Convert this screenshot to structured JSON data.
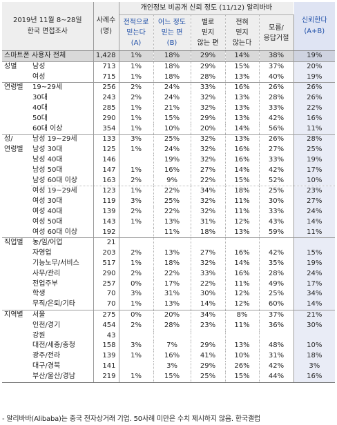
{
  "header": {
    "survey_line1": "2019년 11월 8~28일",
    "survey_line2": "한국 면접조사",
    "n_line1": "사례수",
    "n_line2": "(명)",
    "super_title": "개인정보 비공개 신뢰 정도 (11/12) 알리바바",
    "cols": [
      [
        "전적으로",
        "믿는다",
        "(A)"
      ],
      [
        "어느 정도",
        "믿는 편",
        "(B)"
      ],
      [
        "별로",
        "믿지",
        "않는 편"
      ],
      [
        "전혀",
        "믿지",
        "않는다"
      ],
      [
        "모름/",
        "응답거절",
        ""
      ]
    ],
    "trust_line1": "신뢰한다",
    "trust_line2": "(A+B)"
  },
  "rows": [
    {
      "g": "스마트폰 사용자 전체",
      "s": "",
      "n": "1,428",
      "v": [
        "1%",
        "18%",
        "29%",
        "14%",
        "38%",
        "19%"
      ],
      "total": true
    },
    {
      "g": "성별",
      "s": "남성",
      "n": "713",
      "v": [
        "1%",
        "18%",
        "29%",
        "15%",
        "37%",
        "20%"
      ],
      "sep": "solid"
    },
    {
      "g": "",
      "s": "여성",
      "n": "715",
      "v": [
        "1%",
        "18%",
        "28%",
        "13%",
        "40%",
        "19%"
      ]
    },
    {
      "g": "연령별",
      "s": "19~29세",
      "n": "256",
      "v": [
        "2%",
        "24%",
        "33%",
        "16%",
        "26%",
        "26%"
      ],
      "sep": "solid"
    },
    {
      "g": "",
      "s": "30대",
      "n": "243",
      "v": [
        "2%",
        "24%",
        "32%",
        "13%",
        "28%",
        "26%"
      ]
    },
    {
      "g": "",
      "s": "40대",
      "n": "285",
      "v": [
        "1%",
        "21%",
        "32%",
        "13%",
        "33%",
        "22%"
      ]
    },
    {
      "g": "",
      "s": "50대",
      "n": "290",
      "v": [
        "1%",
        "15%",
        "29%",
        "13%",
        "42%",
        "16%"
      ]
    },
    {
      "g": "",
      "s": "60대 이상",
      "n": "354",
      "v": [
        "1%",
        "10%",
        "20%",
        "14%",
        "56%",
        "11%"
      ]
    },
    {
      "g": "성/",
      "s": "남성 19~29세",
      "n": "133",
      "v": [
        "3%",
        "25%",
        "32%",
        "13%",
        "26%",
        "28%"
      ],
      "sep": "solid"
    },
    {
      "g": "연령별",
      "s": "남성 30대",
      "n": "125",
      "v": [
        "1%",
        "24%",
        "32%",
        "16%",
        "27%",
        "25%"
      ]
    },
    {
      "g": "",
      "s": "남성 40대",
      "n": "146",
      "v": [
        "",
        "19%",
        "32%",
        "16%",
        "33%",
        "19%"
      ]
    },
    {
      "g": "",
      "s": "남성 50대",
      "n": "147",
      "v": [
        "1%",
        "16%",
        "27%",
        "14%",
        "42%",
        "17%"
      ]
    },
    {
      "g": "",
      "s": "남성 60대 이상",
      "n": "163",
      "v": [
        "2%",
        "9%",
        "22%",
        "15%",
        "52%",
        "10%"
      ]
    },
    {
      "g": "",
      "s": "여성 19~29세",
      "n": "123",
      "v": [
        "1%",
        "22%",
        "34%",
        "18%",
        "25%",
        "23%"
      ],
      "sep": "dot"
    },
    {
      "g": "",
      "s": "여성 30대",
      "n": "119",
      "v": [
        "3%",
        "25%",
        "32%",
        "11%",
        "30%",
        "27%"
      ]
    },
    {
      "g": "",
      "s": "여성 40대",
      "n": "139",
      "v": [
        "2%",
        "22%",
        "32%",
        "11%",
        "33%",
        "24%"
      ]
    },
    {
      "g": "",
      "s": "여성 50대",
      "n": "143",
      "v": [
        "1%",
        "13%",
        "31%",
        "12%",
        "43%",
        "14%"
      ]
    },
    {
      "g": "",
      "s": "여성 60대 이상",
      "n": "192",
      "v": [
        "",
        "11%",
        "18%",
        "13%",
        "59%",
        "11%"
      ]
    },
    {
      "g": "직업별",
      "s": "농/임/어업",
      "n": "21",
      "v": [
        "",
        "",
        "",
        "",
        "",
        ""
      ],
      "sep": "solid"
    },
    {
      "g": "",
      "s": "자영업",
      "n": "203",
      "v": [
        "2%",
        "13%",
        "27%",
        "16%",
        "42%",
        "15%"
      ]
    },
    {
      "g": "",
      "s": "기능노무/서비스",
      "n": "517",
      "v": [
        "1%",
        "18%",
        "32%",
        "14%",
        "35%",
        "19%"
      ]
    },
    {
      "g": "",
      "s": "사무/관리",
      "n": "290",
      "v": [
        "2%",
        "22%",
        "33%",
        "16%",
        "28%",
        "24%"
      ]
    },
    {
      "g": "",
      "s": "전업주부",
      "n": "257",
      "v": [
        "0%",
        "17%",
        "22%",
        "11%",
        "49%",
        "17%"
      ]
    },
    {
      "g": "",
      "s": "학생",
      "n": "70",
      "v": [
        "3%",
        "31%",
        "30%",
        "12%",
        "25%",
        "34%"
      ]
    },
    {
      "g": "",
      "s": "무직/은퇴/기타",
      "n": "70",
      "v": [
        "1%",
        "13%",
        "14%",
        "12%",
        "60%",
        "14%"
      ]
    },
    {
      "g": "지역별",
      "s": "서울",
      "n": "275",
      "v": [
        "0%",
        "20%",
        "34%",
        "8%",
        "37%",
        "21%"
      ],
      "sep": "solid"
    },
    {
      "g": "",
      "s": "인천/경기",
      "n": "454",
      "v": [
        "2%",
        "28%",
        "23%",
        "11%",
        "36%",
        "30%"
      ]
    },
    {
      "g": "",
      "s": "강원",
      "n": "43",
      "v": [
        "",
        "",
        "",
        "",
        "",
        ""
      ]
    },
    {
      "g": "",
      "s": "대전/세종/충청",
      "n": "158",
      "v": [
        "3%",
        "7%",
        "29%",
        "13%",
        "48%",
        "10%"
      ]
    },
    {
      "g": "",
      "s": "광주/전라",
      "n": "139",
      "v": [
        "1%",
        "16%",
        "41%",
        "10%",
        "31%",
        "18%"
      ]
    },
    {
      "g": "",
      "s": "대구/경북",
      "n": "141",
      "v": [
        "",
        "3%",
        "29%",
        "26%",
        "42%",
        "3%"
      ]
    },
    {
      "g": "",
      "s": "부산/울산/경남",
      "n": "219",
      "v": [
        "1%",
        "15%",
        "25%",
        "15%",
        "44%",
        "16%"
      ]
    }
  ],
  "footnote": "- 알리바바(Alibaba)는 중국 전자상거래 기업. 50사례 미만은 수치 제시하지 않음. 한국갤럽",
  "colors": {
    "header_bg": "#eeeeee",
    "accent_text": "#1f4fa8",
    "trust_col_bg": "#e9ecf6",
    "total_row_bg": "#d9d9d9"
  }
}
